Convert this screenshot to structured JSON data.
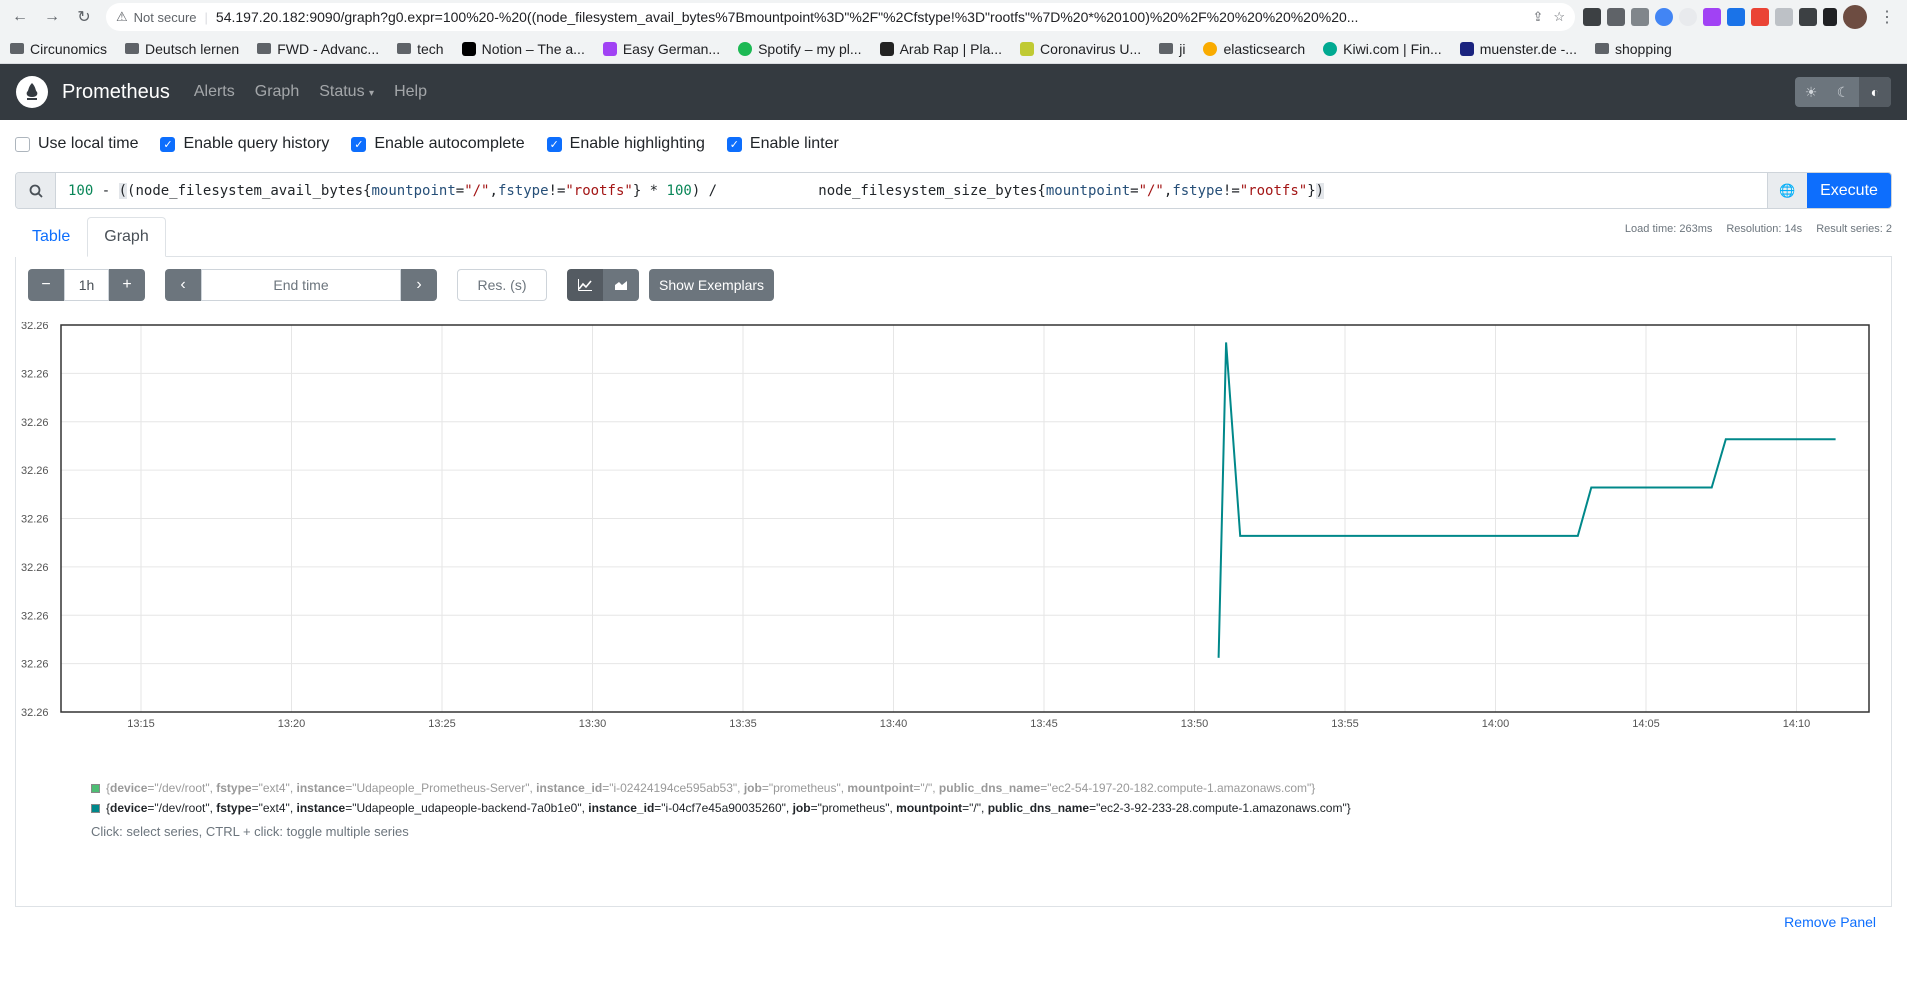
{
  "browser": {
    "url_warning": "Not secure",
    "url": "54.197.20.182:9090/graph?g0.expr=100%20-%20((node_filesystem_avail_bytes%7Bmountpoint%3D\"%2F\"%2Cfstype!%3D\"rootfs\"%7D%20*%20100)%20%2F%20%20%20%20%20...",
    "bookmarks": [
      "Circunomics",
      "Deutsch lernen",
      "FWD - Advanc...",
      "tech",
      "Notion – The a...",
      "Easy German...",
      "Spotify – my pl...",
      "Arab Rap | Pla...",
      "Coronavirus U...",
      "ji",
      "elasticsearch",
      "Kiwi.com | Fin...",
      "muenster.de -...",
      "shopping"
    ]
  },
  "navbar": {
    "brand": "Prometheus",
    "links": [
      "Alerts",
      "Graph",
      "Status",
      "Help"
    ]
  },
  "options": {
    "use_local_time": "Use local time",
    "query_history": "Enable query history",
    "autocomplete": "Enable autocomplete",
    "highlighting": "Enable highlighting",
    "linter": "Enable linter"
  },
  "query": {
    "execute_label": "Execute"
  },
  "tabs": {
    "table": "Table",
    "graph": "Graph"
  },
  "stats": {
    "load_time": "Load time: 263ms",
    "resolution": "Resolution: 14s",
    "result_series": "Result series: 2"
  },
  "controls": {
    "range": "1h",
    "end_time_placeholder": "End time",
    "res_placeholder": "Res. (s)",
    "exemplars": "Show Exemplars"
  },
  "chart_data": {
    "type": "line",
    "x_ticks": [
      "13:15",
      "13:20",
      "13:25",
      "13:30",
      "13:35",
      "13:40",
      "13:45",
      "13:50",
      "13:55",
      "14:00",
      "14:05",
      "14:10"
    ],
    "y_ticks": [
      "32.26",
      "32.26",
      "32.26",
      "32.26",
      "32.26",
      "32.26",
      "32.26",
      "32.26",
      "32.26"
    ],
    "series_color": "#00888a",
    "series": [
      {
        "points": [
          {
            "t": "13:50:48",
            "level": 0.14
          },
          {
            "t": "13:51:03",
            "level": 0.955
          },
          {
            "t": "13:51:31",
            "level": 0.455
          },
          {
            "t": "14:02:44",
            "level": 0.455
          },
          {
            "t": "14:03:11",
            "level": 0.58
          },
          {
            "t": "14:07:11",
            "level": 0.58
          },
          {
            "t": "14:07:39",
            "level": 0.705
          },
          {
            "t": "14:11:18",
            "level": 0.705
          }
        ]
      }
    ]
  },
  "legend": {
    "series": [
      {
        "color": "#4dbd74",
        "dim": true,
        "labels": [
          {
            "k": "device",
            "v": "\"/dev/root\""
          },
          {
            "k": "fstype",
            "v": "\"ext4\""
          },
          {
            "k": "instance",
            "v": "\"Udapeople_Prometheus-Server\""
          },
          {
            "k": "instance_id",
            "v": "\"i-02424194ce595ab53\""
          },
          {
            "k": "job",
            "v": "\"prometheus\""
          },
          {
            "k": "mountpoint",
            "v": "\"/\""
          },
          {
            "k": "public_dns_name",
            "v": "\"ec2-54-197-20-182.compute-1.amazonaws.com\""
          }
        ]
      },
      {
        "color": "#00888a",
        "dim": false,
        "labels": [
          {
            "k": "device",
            "v": "\"/dev/root\""
          },
          {
            "k": "fstype",
            "v": "\"ext4\""
          },
          {
            "k": "instance",
            "v": "\"Udapeople_udapeople-backend-7a0b1e0\""
          },
          {
            "k": "instance_id",
            "v": "\"i-04cf7e45a90035260\""
          },
          {
            "k": "job",
            "v": "\"prometheus\""
          },
          {
            "k": "mountpoint",
            "v": "\"/\""
          },
          {
            "k": "public_dns_name",
            "v": "\"ec2-3-92-233-28.compute-1.amazonaws.com\""
          }
        ]
      }
    ],
    "hint": "Click: select series, CTRL + click: toggle multiple series"
  },
  "remove_panel": "Remove Panel"
}
